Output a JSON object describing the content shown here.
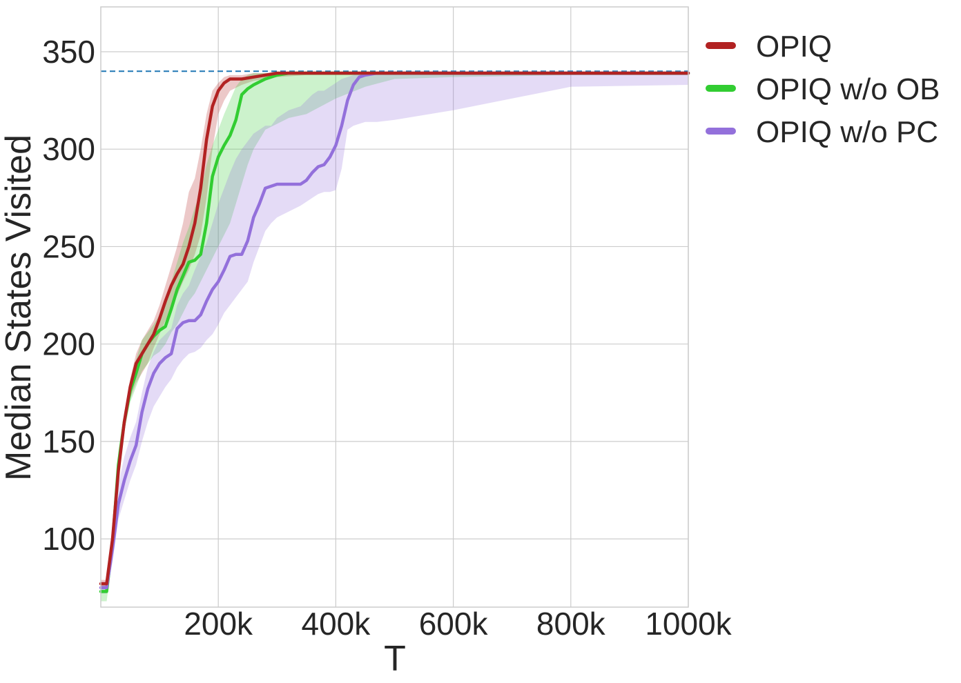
{
  "chart_data": {
    "type": "line",
    "title": "",
    "xlabel": "T",
    "ylabel": "Median States Visited",
    "xlim": [
      0,
      1000000
    ],
    "ylim": [
      65,
      373
    ],
    "xticks": [
      {
        "value": 200000,
        "label": "200k"
      },
      {
        "value": 400000,
        "label": "400k"
      },
      {
        "value": 600000,
        "label": "600k"
      },
      {
        "value": 800000,
        "label": "800k"
      },
      {
        "value": 1000000,
        "label": "1000k"
      }
    ],
    "yticks": [
      {
        "value": 100,
        "label": "100"
      },
      {
        "value": 150,
        "label": "150"
      },
      {
        "value": 200,
        "label": "200"
      },
      {
        "value": 250,
        "label": "250"
      },
      {
        "value": 300,
        "label": "300"
      },
      {
        "value": 350,
        "label": "350"
      }
    ],
    "grid": true,
    "legend_position": "outside-right-top",
    "reference_line": {
      "y": 340,
      "color": "#1f77b4",
      "style": "dashed"
    },
    "series": [
      {
        "name": "OPIQ",
        "color": "#b22222",
        "x": [
          0,
          10000,
          20000,
          30000,
          40000,
          50000,
          60000,
          70000,
          80000,
          90000,
          100000,
          110000,
          120000,
          130000,
          140000,
          150000,
          160000,
          170000,
          180000,
          190000,
          200000,
          210000,
          220000,
          240000,
          260000,
          280000,
          300000,
          350000,
          400000,
          500000,
          600000,
          800000,
          1000000
        ],
        "median": [
          77,
          77,
          100,
          135,
          160,
          178,
          190,
          195,
          200,
          205,
          213,
          222,
          230,
          236,
          241,
          250,
          262,
          280,
          305,
          322,
          330,
          334,
          336,
          336,
          337,
          338,
          339,
          339,
          339,
          339,
          339,
          339,
          339
        ],
        "lower": [
          75,
          75,
          96,
          130,
          155,
          172,
          180,
          185,
          190,
          198,
          205,
          212,
          218,
          225,
          232,
          238,
          246,
          256,
          275,
          300,
          318,
          325,
          330,
          333,
          335,
          336,
          337,
          338,
          338,
          338,
          338,
          338,
          338
        ],
        "upper": [
          79,
          79,
          104,
          140,
          165,
          182,
          195,
          202,
          207,
          212,
          220,
          230,
          240,
          250,
          262,
          278,
          285,
          300,
          318,
          330,
          334,
          337,
          338,
          338,
          339,
          339,
          339,
          339,
          339,
          339,
          339,
          339,
          339
        ]
      },
      {
        "name": "OPIQ w/o OB",
        "color": "#32cd32",
        "x": [
          0,
          10000,
          20000,
          30000,
          40000,
          50000,
          60000,
          70000,
          80000,
          90000,
          100000,
          110000,
          120000,
          130000,
          140000,
          150000,
          160000,
          170000,
          180000,
          190000,
          200000,
          210000,
          220000,
          230000,
          240000,
          250000,
          260000,
          280000,
          300000,
          320000,
          350000,
          400000,
          450000,
          500000,
          600000,
          800000,
          1000000
        ],
        "median": [
          73,
          73,
          98,
          138,
          160,
          176,
          185,
          195,
          200,
          204,
          207,
          209,
          218,
          228,
          235,
          242,
          243,
          246,
          262,
          286,
          296,
          302,
          307,
          315,
          328,
          331,
          333,
          336,
          338,
          339,
          339,
          339,
          339,
          339,
          339,
          339,
          339
        ],
        "lower": [
          68,
          68,
          92,
          130,
          155,
          170,
          178,
          186,
          190,
          194,
          196,
          200,
          206,
          210,
          216,
          222,
          226,
          232,
          238,
          244,
          250,
          256,
          262,
          272,
          282,
          292,
          300,
          310,
          313,
          316,
          318,
          326,
          332,
          336,
          337,
          338,
          338
        ],
        "upper": [
          76,
          76,
          104,
          145,
          165,
          180,
          192,
          202,
          206,
          210,
          215,
          222,
          232,
          242,
          252,
          260,
          270,
          278,
          292,
          302,
          310,
          318,
          325,
          332,
          336,
          338,
          339,
          339,
          339,
          339,
          339,
          339,
          339,
          339,
          339,
          339,
          339
        ]
      },
      {
        "name": "OPIQ w/o PC",
        "color": "#9370db",
        "x": [
          0,
          10000,
          20000,
          30000,
          40000,
          50000,
          60000,
          70000,
          80000,
          90000,
          100000,
          110000,
          120000,
          130000,
          140000,
          150000,
          160000,
          170000,
          180000,
          190000,
          200000,
          210000,
          220000,
          230000,
          240000,
          250000,
          260000,
          270000,
          280000,
          290000,
          300000,
          320000,
          340000,
          350000,
          360000,
          370000,
          380000,
          390000,
          400000,
          410000,
          420000,
          430000,
          440000,
          450000,
          470000,
          500000,
          600000,
          800000,
          1000000
        ],
        "median": [
          75,
          75,
          95,
          118,
          130,
          140,
          148,
          165,
          177,
          185,
          190,
          193,
          195,
          208,
          211,
          212,
          212,
          215,
          222,
          228,
          232,
          238,
          245,
          246,
          246,
          253,
          265,
          272,
          280,
          281,
          282,
          282,
          282,
          284,
          288,
          291,
          292,
          296,
          302,
          312,
          325,
          333,
          337,
          338,
          339,
          339,
          339,
          339,
          339
        ],
        "lower": [
          72,
          72,
          88,
          110,
          120,
          130,
          138,
          150,
          160,
          168,
          173,
          178,
          182,
          188,
          192,
          195,
          196,
          198,
          202,
          205,
          210,
          216,
          220,
          224,
          228,
          232,
          242,
          250,
          258,
          262,
          265,
          268,
          271,
          273,
          275,
          277,
          278,
          278,
          279,
          290,
          310,
          312,
          313,
          314,
          314,
          315,
          320,
          332,
          333
        ],
        "upper": [
          78,
          78,
          100,
          128,
          142,
          152,
          160,
          175,
          188,
          196,
          202,
          205,
          208,
          220,
          226,
          230,
          238,
          245,
          252,
          262,
          272,
          280,
          288,
          295,
          300,
          304,
          308,
          310,
          312,
          312,
          316,
          320,
          322,
          325,
          328,
          330,
          330,
          332,
          334,
          336,
          337,
          338,
          339,
          339,
          339,
          339,
          339,
          339,
          339
        ]
      }
    ]
  }
}
